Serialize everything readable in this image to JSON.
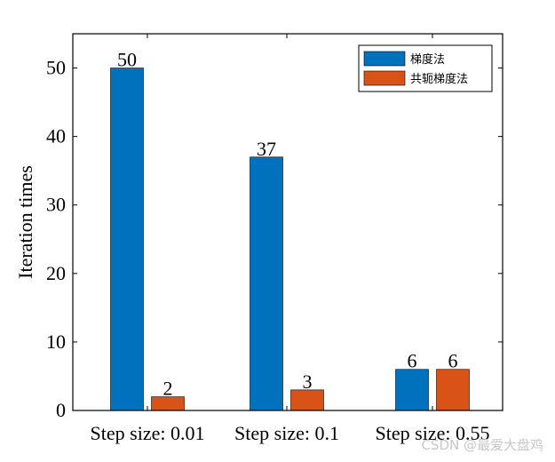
{
  "chart_data": {
    "type": "bar",
    "categories": [
      "Step size: 0.01",
      "Step size: 0.1",
      "Step size: 0.55"
    ],
    "series": [
      {
        "name": "梯度法",
        "values": [
          50,
          37,
          6
        ],
        "color": "#0072BD"
      },
      {
        "name": "共轭梯度法",
        "values": [
          2,
          3,
          6
        ],
        "color": "#D95319"
      }
    ],
    "data_labels": [
      [
        "50",
        "37",
        "6"
      ],
      [
        "2",
        "3",
        "6"
      ]
    ],
    "xlabel": "",
    "ylabel": "Iteration times",
    "ylim": [
      0,
      55
    ],
    "yticks": [
      0,
      10,
      20,
      30,
      40,
      50
    ],
    "grid": false,
    "legend_position": "top-right"
  },
  "watermark": "CSDN @最爱大盘鸡"
}
